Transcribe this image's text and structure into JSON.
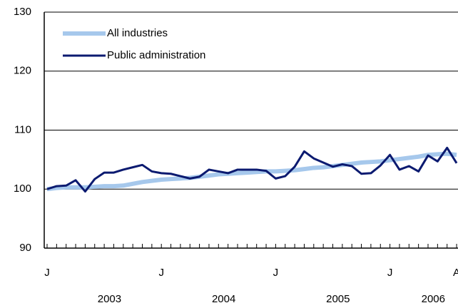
{
  "chart_data": {
    "type": "line",
    "categories": [
      "J",
      null,
      null,
      null,
      null,
      null,
      null,
      null,
      null,
      null,
      null,
      null,
      "J",
      null,
      null,
      null,
      null,
      null,
      null,
      null,
      null,
      null,
      null,
      null,
      "J",
      null,
      null,
      null,
      null,
      null,
      null,
      null,
      null,
      null,
      null,
      null,
      "J",
      null,
      null,
      null,
      null,
      null,
      null,
      "A"
    ],
    "x_group_labels": [
      "2003",
      "2004",
      "2005",
      "2006"
    ],
    "series": [
      {
        "name": "All industries",
        "color": "#a6c8ec",
        "values": [
          100,
          100.2,
          100.3,
          100.3,
          100.3,
          100.4,
          100.5,
          100.5,
          100.6,
          100.9,
          101.2,
          101.4,
          101.6,
          101.7,
          101.8,
          101.9,
          102.1,
          102.3,
          102.5,
          102.6,
          102.7,
          102.8,
          102.9,
          103.0,
          103.0,
          103.1,
          103.2,
          103.4,
          103.6,
          103.7,
          103.9,
          104.1,
          104.3,
          104.5,
          104.6,
          104.7,
          104.9,
          105.1,
          105.3,
          105.5,
          105.8,
          105.9,
          106.0,
          105.8
        ]
      },
      {
        "name": "Public administration",
        "color": "#0b1a70",
        "values": [
          100,
          100.5,
          100.6,
          101.5,
          99.6,
          101.7,
          102.8,
          102.8,
          103.3,
          103.7,
          104.1,
          103.0,
          102.7,
          102.6,
          102.2,
          101.8,
          102.1,
          103.3,
          103.0,
          102.7,
          103.3,
          103.3,
          103.3,
          103.1,
          101.8,
          102.2,
          103.8,
          106.4,
          105.2,
          104.5,
          103.8,
          104.2,
          103.9,
          102.6,
          102.7,
          104.0,
          105.8,
          103.3,
          103.9,
          103.0,
          105.7,
          104.7,
          107.0,
          104.4
        ]
      }
    ],
    "ylim": [
      90,
      130
    ],
    "yticks": [
      90,
      100,
      110,
      120,
      130
    ],
    "grid": true,
    "legend": "upper left"
  }
}
